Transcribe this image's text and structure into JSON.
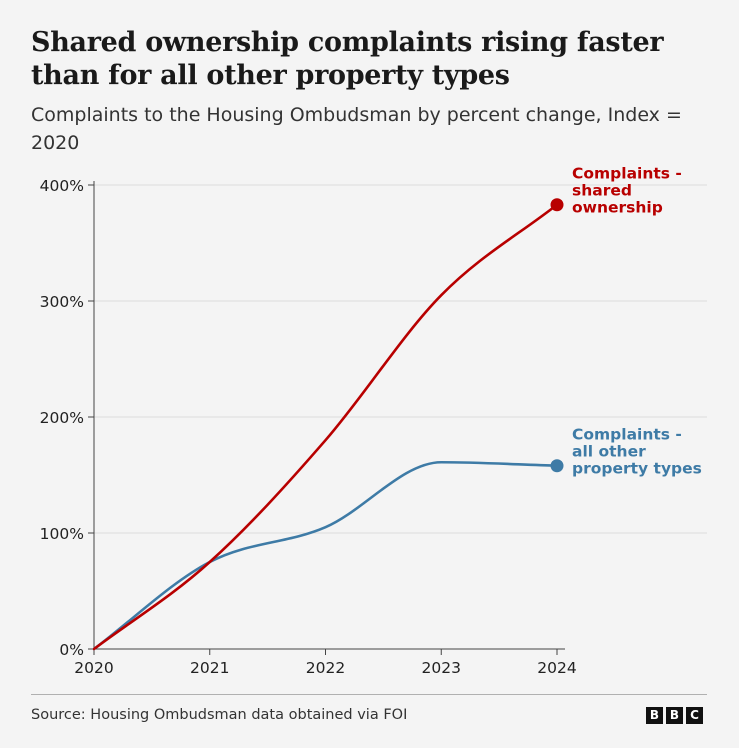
{
  "title": "Shared ownership complaints rising faster than for all other property types",
  "subtitle": "Complaints to the Housing Ombudsman by percent change, Index = 2020",
  "source": "Source: Housing Ombudsman data obtained via FOI",
  "logo": [
    "B",
    "B",
    "C"
  ],
  "chart_data": {
    "type": "line",
    "x": [
      2020,
      2021,
      2022,
      2023,
      2024
    ],
    "x_tick_labels": [
      "2020",
      "2021",
      "2022",
      "2023",
      "2024"
    ],
    "ylim": [
      0,
      400
    ],
    "y_ticks": [
      0,
      100,
      200,
      300,
      400
    ],
    "y_tick_labels": [
      "0%",
      "100%",
      "200%",
      "300%",
      "400%"
    ],
    "grid": true,
    "series": [
      {
        "name": "Complaints - shared ownership",
        "label_lines": [
          "Complaints -",
          "shared",
          "ownership"
        ],
        "color": "#b80000",
        "values": [
          0,
          75,
          180,
          305,
          383
        ]
      },
      {
        "name": "Complaints - all other property types",
        "label_lines": [
          "Complaints -",
          "all other",
          "property types"
        ],
        "color": "#3e7ba6",
        "values": [
          0,
          75,
          105,
          161,
          158
        ]
      }
    ]
  }
}
